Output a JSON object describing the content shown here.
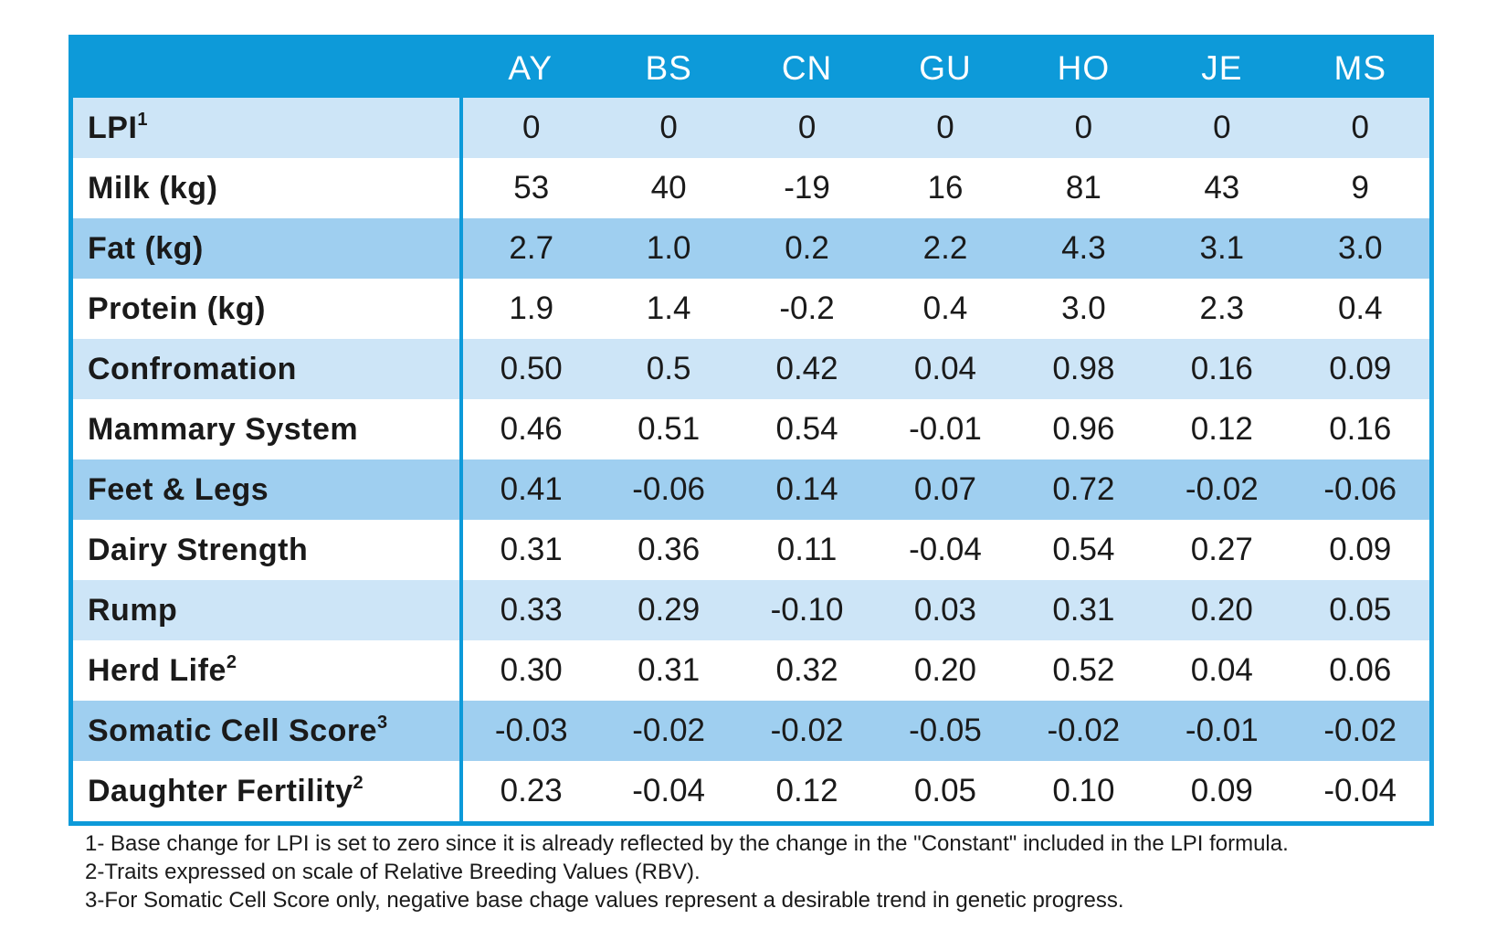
{
  "table": {
    "columns": [
      "AY",
      "BS",
      "CN",
      "GU",
      "HO",
      "JE",
      "MS"
    ],
    "rows": [
      {
        "trait": "LPI",
        "sup": "1",
        "style": "light",
        "values": [
          "0",
          "0",
          "0",
          "0",
          "0",
          "0",
          "0"
        ]
      },
      {
        "trait": "Milk (kg)",
        "sup": "",
        "style": "white",
        "values": [
          "53",
          "40",
          "-19",
          "16",
          "81",
          "43",
          "9"
        ]
      },
      {
        "trait": "Fat (kg)",
        "sup": "",
        "style": "mid",
        "values": [
          "2.7",
          "1.0",
          "0.2",
          "2.2",
          "4.3",
          "3.1",
          "3.0"
        ]
      },
      {
        "trait": "Protein (kg)",
        "sup": "",
        "style": "white",
        "values": [
          "1.9",
          "1.4",
          "-0.2",
          "0.4",
          "3.0",
          "2.3",
          "0.4"
        ]
      },
      {
        "trait": "Confromation",
        "sup": "",
        "style": "light",
        "values": [
          "0.50",
          "0.5",
          "0.42",
          "0.04",
          "0.98",
          "0.16",
          "0.09"
        ]
      },
      {
        "trait": "Mammary System",
        "sup": "",
        "style": "white",
        "values": [
          "0.46",
          "0.51",
          "0.54",
          "-0.01",
          "0.96",
          "0.12",
          "0.16"
        ]
      },
      {
        "trait": "Feet & Legs",
        "sup": "",
        "style": "mid",
        "values": [
          "0.41",
          "-0.06",
          "0.14",
          "0.07",
          "0.72",
          "-0.02",
          "-0.06"
        ]
      },
      {
        "trait": "Dairy Strength",
        "sup": "",
        "style": "white",
        "values": [
          "0.31",
          "0.36",
          "0.11",
          "-0.04",
          "0.54",
          "0.27",
          "0.09"
        ]
      },
      {
        "trait": "Rump",
        "sup": "",
        "style": "light",
        "values": [
          "0.33",
          "0.29",
          "-0.10",
          "0.03",
          "0.31",
          "0.20",
          "0.05"
        ]
      },
      {
        "trait": "Herd Life",
        "sup": "2",
        "style": "white",
        "values": [
          "0.30",
          "0.31",
          "0.32",
          "0.20",
          "0.52",
          "0.04",
          "0.06"
        ]
      },
      {
        "trait": "Somatic Cell Score",
        "sup": "3",
        "style": "mid",
        "values": [
          "-0.03",
          "-0.02",
          "-0.02",
          "-0.05",
          "-0.02",
          "-0.01",
          "-0.02"
        ]
      },
      {
        "trait": "Daughter Fertility",
        "sup": "2",
        "style": "white",
        "values": [
          "0.23",
          "-0.04",
          "0.12",
          "0.05",
          "0.10",
          "0.09",
          "-0.04"
        ]
      }
    ]
  },
  "footnotes": [
    "1- Base change for LPI is set to zero since it is already reflected by the change in the \"Constant\" included in the LPI formula.",
    "2-Traits expressed on scale of Relative Breeding Values (RBV).",
    "3-For Somatic Cell Score only, negative base chage values represent a desirable trend in genetic progress."
  ],
  "colors": {
    "header": "#0d9ad9",
    "row_light": "#cde5f7",
    "row_mid": "#9fcff0",
    "row_white": "#ffffff"
  }
}
